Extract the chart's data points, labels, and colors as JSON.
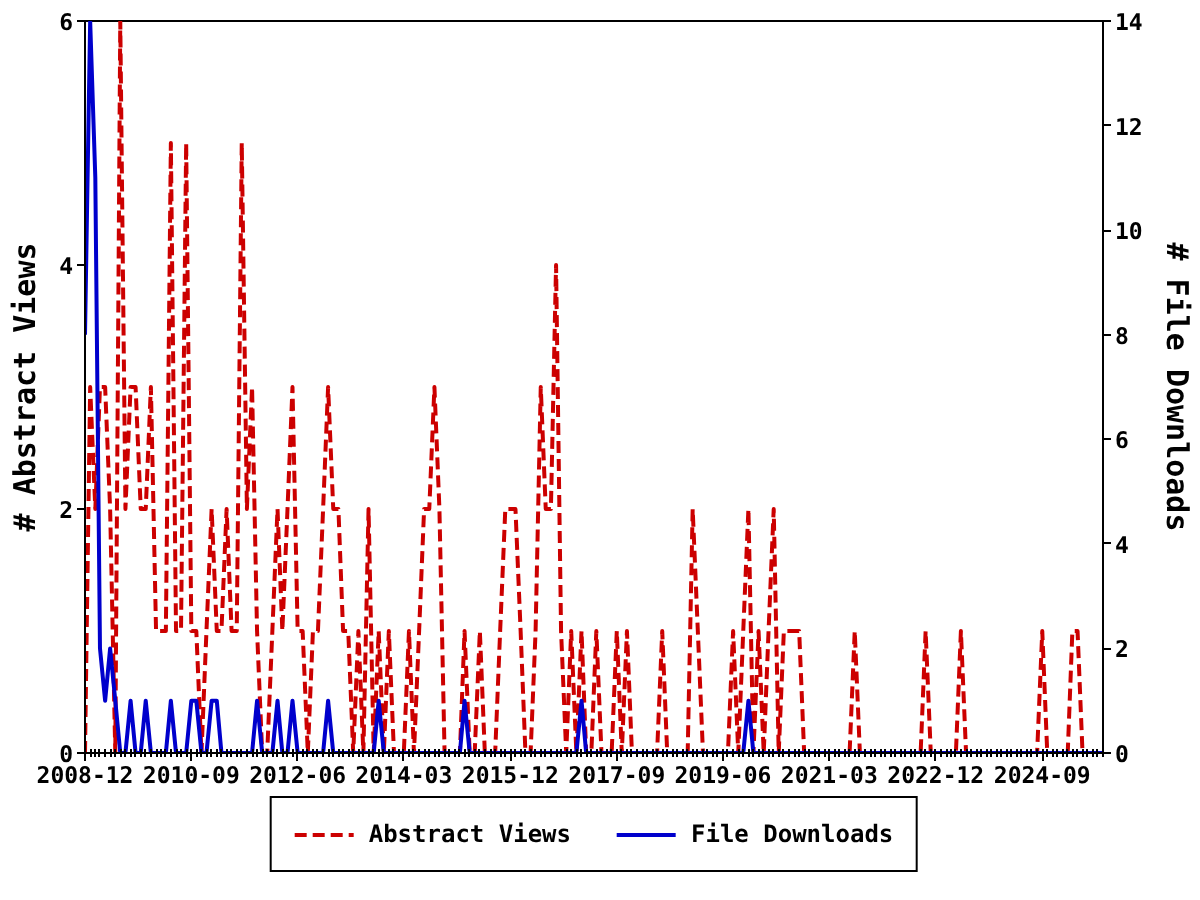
{
  "chart_data": {
    "type": "line",
    "ylabel": "# Abstract Views",
    "y2label": "# File Downloads",
    "xlim": [
      "2008-12",
      "2025-09"
    ],
    "xticks": [
      "2008-12",
      "2010-09",
      "2012-06",
      "2014-03",
      "2015-12",
      "2017-09",
      "2019-06",
      "2021-03",
      "2022-12",
      "2024-09"
    ],
    "ylim": [
      0,
      6
    ],
    "yticks": [
      0,
      2,
      4,
      6
    ],
    "y2lim": [
      0,
      14
    ],
    "y2ticks": [
      0,
      2,
      4,
      6,
      8,
      10,
      12,
      14
    ],
    "grid": false,
    "legend": "bottom",
    "series": [
      {
        "name": "Abstract Views",
        "color": "#cc0000",
        "line_style": "dashed",
        "x": [
          "2008-12",
          "2009-01",
          "2009-02",
          "2009-03",
          "2009-04",
          "2009-05",
          "2009-06",
          "2009-07",
          "2009-08",
          "2009-09",
          "2009-10",
          "2009-11",
          "2009-12",
          "2010-01",
          "2010-02",
          "2010-03",
          "2010-04",
          "2010-05",
          "2010-06",
          "2010-07",
          "2010-08",
          "2010-09",
          "2010-10",
          "2010-11",
          "2010-12",
          "2011-01",
          "2011-02",
          "2011-03",
          "2011-04",
          "2011-05",
          "2011-06",
          "2011-07",
          "2011-08",
          "2011-09",
          "2011-10",
          "2011-11",
          "2011-12",
          "2012-01",
          "2012-02",
          "2012-03",
          "2012-04",
          "2012-05",
          "2012-06",
          "2012-07",
          "2012-08",
          "2012-09",
          "2012-10",
          "2012-11",
          "2012-12",
          "2013-01",
          "2013-02",
          "2013-03",
          "2013-04",
          "2013-05",
          "2013-06",
          "2013-07",
          "2013-08",
          "2013-09",
          "2013-10",
          "2013-11",
          "2013-12",
          "2014-01",
          "2014-02",
          "2014-03",
          "2014-04",
          "2014-05",
          "2014-06",
          "2014-07",
          "2014-08",
          "2014-09",
          "2014-10",
          "2014-11",
          "2015-02",
          "2015-03",
          "2015-04",
          "2015-05",
          "2015-06",
          "2015-07",
          "2015-09",
          "2015-10",
          "2015-11",
          "2015-12",
          "2016-01",
          "2016-02",
          "2016-03",
          "2016-04",
          "2016-05",
          "2016-06",
          "2016-07",
          "2016-08",
          "2016-09",
          "2016-10",
          "2016-11",
          "2016-12",
          "2017-01",
          "2017-02",
          "2017-03",
          "2017-04",
          "2017-05",
          "2017-06",
          "2017-08",
          "2017-09",
          "2017-10",
          "2017-11",
          "2017-12",
          "2018-05",
          "2018-06",
          "2018-07",
          "2018-11",
          "2018-12",
          "2019-01",
          "2019-02",
          "2019-07",
          "2019-08",
          "2019-09",
          "2019-10",
          "2019-11",
          "2019-12",
          "2020-01",
          "2020-02",
          "2020-03",
          "2020-04",
          "2020-05",
          "2020-06",
          "2020-07",
          "2020-08",
          "2020-09",
          "2020-10",
          "2021-07",
          "2021-08",
          "2021-09",
          "2022-09",
          "2022-10",
          "2022-11",
          "2023-04",
          "2023-05",
          "2023-06",
          "2024-08",
          "2024-09",
          "2024-10",
          "2025-02",
          "2025-03",
          "2025-04",
          "2025-05",
          "2025-09"
        ],
        "values": [
          0,
          3,
          2,
          3,
          3,
          2,
          0,
          6,
          2,
          3,
          3,
          2,
          2,
          3,
          1,
          1,
          1,
          5,
          1,
          1,
          5,
          1,
          1,
          0,
          1,
          2,
          1,
          1,
          2,
          1,
          1,
          5,
          2,
          3,
          1,
          0,
          0,
          1,
          2,
          1,
          2,
          3,
          1,
          1,
          0,
          1,
          1,
          2,
          3,
          2,
          2,
          1,
          1,
          0,
          1,
          0,
          2,
          0,
          1,
          0,
          1,
          0,
          0,
          0,
          1,
          0,
          1,
          2,
          2,
          3,
          2,
          0,
          0,
          1,
          0,
          0,
          1,
          0,
          0,
          1,
          2,
          2,
          2,
          1,
          0,
          0,
          1,
          3,
          2,
          2,
          4,
          1,
          0,
          1,
          0,
          1,
          0,
          0,
          1,
          0,
          0,
          1,
          0,
          1,
          0,
          0,
          1,
          0,
          0,
          2,
          1,
          0,
          0,
          1,
          0,
          1,
          2,
          0,
          1,
          0,
          1,
          2,
          0,
          1,
          1,
          1,
          1,
          0,
          0,
          1,
          0,
          0,
          1,
          0,
          0,
          1,
          0,
          0,
          1,
          0,
          0,
          1,
          1,
          0,
          0
        ]
      },
      {
        "name": "File Downloads",
        "color": "#0000cc",
        "line_style": "solid",
        "axis": "y2",
        "x": [
          "2008-12",
          "2009-01",
          "2009-02",
          "2009-03",
          "2009-04",
          "2009-05",
          "2009-06",
          "2009-07",
          "2009-08",
          "2009-09",
          "2009-10",
          "2009-11",
          "2009-12",
          "2010-01",
          "2010-04",
          "2010-05",
          "2010-06",
          "2010-08",
          "2010-09",
          "2010-10",
          "2010-11",
          "2010-12",
          "2011-01",
          "2011-02",
          "2011-03",
          "2011-09",
          "2011-10",
          "2011-11",
          "2012-01",
          "2012-02",
          "2012-03",
          "2012-04",
          "2012-05",
          "2012-06",
          "2012-11",
          "2012-12",
          "2013-01",
          "2013-09",
          "2013-10",
          "2013-11",
          "2015-02",
          "2015-03",
          "2015-04",
          "2017-01",
          "2017-02",
          "2017-03",
          "2019-10",
          "2019-11",
          "2019-12",
          "2025-09"
        ],
        "values": [
          8,
          14,
          11,
          2,
          1,
          2,
          1,
          0,
          0,
          1,
          0,
          0,
          1,
          0,
          0,
          1,
          0,
          0,
          1,
          1,
          0,
          0,
          1,
          1,
          0,
          0,
          1,
          0,
          0,
          1,
          0,
          0,
          1,
          0,
          0,
          1,
          0,
          0,
          1,
          0,
          0,
          1,
          0,
          0,
          1,
          0,
          0,
          1,
          0,
          0
        ]
      }
    ]
  }
}
